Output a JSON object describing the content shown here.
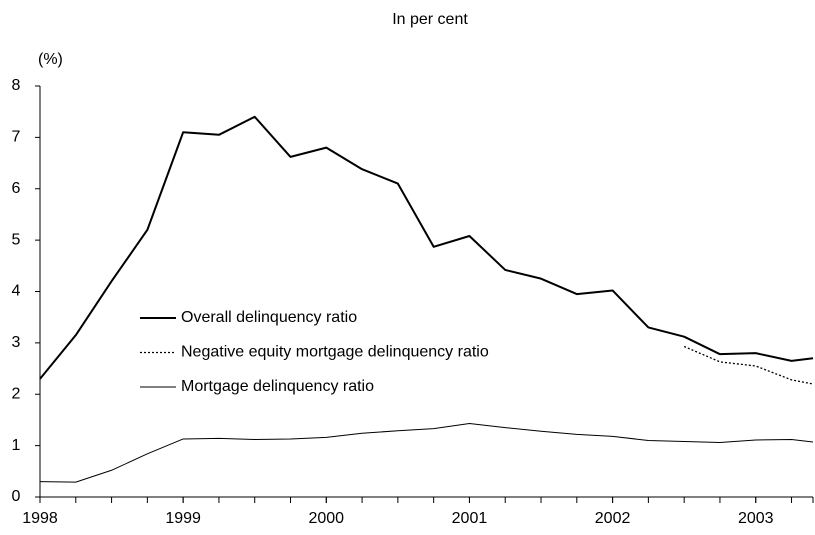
{
  "chart_data": {
    "type": "line",
    "title": "In per cent",
    "y_label": "(%)",
    "x": [
      1998,
      1998.25,
      1998.5,
      1998.75,
      1999,
      1999.25,
      1999.5,
      1999.75,
      2000,
      2000.25,
      2000.5,
      2000.75,
      2001,
      2001.25,
      2001.5,
      2001.75,
      2002,
      2002.25,
      2002.5,
      2002.75,
      2003,
      2003.25,
      2003.4
    ],
    "series": [
      {
        "name": "Overall delinquency ratio",
        "color": "#000000",
        "style": "thick",
        "values": [
          2.3,
          3.15,
          4.2,
          5.2,
          7.1,
          7.05,
          7.4,
          6.62,
          6.8,
          6.38,
          6.1,
          4.87,
          5.08,
          4.42,
          4.25,
          3.95,
          4.02,
          3.3,
          3.12,
          2.78,
          2.8,
          2.65,
          2.7
        ]
      },
      {
        "name": "Negative equity mortgage delinquency ratio",
        "color": "#000000",
        "style": "dotted",
        "values": [
          null,
          null,
          null,
          null,
          null,
          null,
          null,
          null,
          null,
          null,
          null,
          null,
          null,
          null,
          null,
          null,
          null,
          null,
          2.93,
          2.63,
          2.55,
          2.28,
          2.2
        ]
      },
      {
        "name": "Mortgage delinquency ratio",
        "color": "#000000",
        "style": "thin",
        "values": [
          0.3,
          0.29,
          0.52,
          0.84,
          1.13,
          1.14,
          1.12,
          1.13,
          1.16,
          1.24,
          1.29,
          1.33,
          1.43,
          1.35,
          1.28,
          1.22,
          1.18,
          1.1,
          1.08,
          1.06,
          1.11,
          1.12,
          1.07
        ]
      }
    ],
    "xlim": [
      1998,
      2003.4
    ],
    "xticks": [
      1998,
      1999,
      2000,
      2001,
      2002,
      2003
    ],
    "ylim": [
      0,
      8
    ],
    "yticks": [
      0,
      1,
      2,
      3,
      4,
      5,
      6,
      7,
      8
    ],
    "grid": false,
    "legend": "left"
  }
}
